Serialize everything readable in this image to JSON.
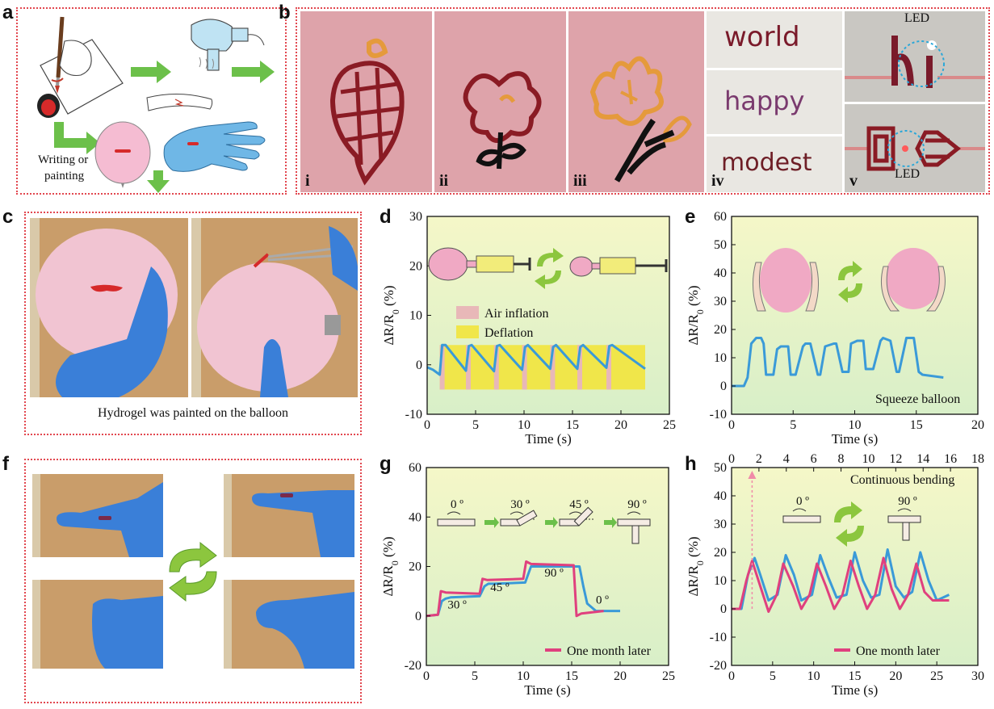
{
  "panels": {
    "a": {
      "label": "a",
      "caption_line1": "Writing or",
      "caption_line2": "painting"
    },
    "b": {
      "label": "b",
      "sub": [
        "i",
        "ii",
        "iii",
        "iv",
        "v"
      ],
      "words": [
        "world",
        "happy",
        "modest"
      ],
      "led_top": "LED",
      "led_bottom": "LED"
    },
    "c": {
      "label": "c",
      "caption": "Hydrogel was painted on the balloon"
    },
    "f": {
      "label": "f"
    }
  },
  "colors": {
    "border_dots": "#e2474f",
    "chart_bg_top": "#f5f7c8",
    "chart_bg_bottom": "#d8efc8",
    "blue_series": "#3a9ad8",
    "pink_series": "#e0407e",
    "inflation_band": "#e8b8b8",
    "deflation_band": "#f0e64a"
  },
  "chart_data": [
    {
      "id": "d",
      "label": "d",
      "type": "line",
      "xlabel": "Time (s)",
      "ylabel": "ΔR/R0 (%)",
      "xlim": [
        0,
        25
      ],
      "ylim": [
        -10,
        30
      ],
      "xticks": [
        0,
        5,
        10,
        15,
        20,
        25
      ],
      "yticks": [
        -10,
        0,
        10,
        20,
        30
      ],
      "legend": [
        {
          "name": "Air inflation",
          "color": "#e8b8b8"
        },
        {
          "name": "Deflation",
          "color": "#f0e64a"
        }
      ],
      "band_range": [
        1.3,
        22.5
      ],
      "inflation_bands": [
        [
          1.3,
          1.8
        ],
        [
          4.0,
          4.5
        ],
        [
          6.9,
          7.4
        ],
        [
          9.8,
          10.3
        ],
        [
          12.7,
          13.2
        ],
        [
          15.5,
          16.0
        ],
        [
          18.5,
          19.0
        ]
      ],
      "series": [
        {
          "color": "#3a9ad8",
          "x": [
            0,
            0.6,
            1.3,
            1.55,
            1.9,
            4.0,
            4.3,
            4.6,
            6.9,
            7.2,
            7.5,
            9.8,
            10.1,
            10.4,
            12.7,
            13.0,
            13.3,
            15.5,
            15.8,
            16.1,
            18.5,
            18.8,
            19.1,
            22.5
          ],
          "y": [
            -0.5,
            -1.0,
            -2.0,
            4.0,
            4.0,
            -1.2,
            3.8,
            4.0,
            -1.3,
            3.8,
            4.0,
            -1.0,
            3.6,
            4.0,
            -0.8,
            3.6,
            4.0,
            -0.8,
            3.6,
            4.0,
            -0.6,
            3.8,
            4.0,
            -0.8
          ]
        }
      ]
    },
    {
      "id": "e",
      "label": "e",
      "type": "line",
      "xlabel": "Time (s)",
      "ylabel": "ΔR/R0 (%)",
      "xlim": [
        0,
        20
      ],
      "ylim": [
        -10,
        60
      ],
      "xticks": [
        0,
        5,
        10,
        15,
        20
      ],
      "yticks": [
        -10,
        0,
        10,
        20,
        30,
        40,
        50,
        60
      ],
      "annotation": "Squeeze balloon",
      "series": [
        {
          "color": "#3a9ad8",
          "x": [
            0,
            1.0,
            1.3,
            1.6,
            2.0,
            2.4,
            2.6,
            2.8,
            3.4,
            3.7,
            4.0,
            4.6,
            4.8,
            5.2,
            5.8,
            6.0,
            6.4,
            7.0,
            7.2,
            7.6,
            8.3,
            8.5,
            9.0,
            9.5,
            9.7,
            10.2,
            10.7,
            10.9,
            11.5,
            12.1,
            12.3,
            12.9,
            13.4,
            13.6,
            14.2,
            14.6,
            14.8,
            15.2,
            15.5,
            17.2
          ],
          "y": [
            0,
            0,
            3,
            15,
            17,
            17,
            15,
            4,
            4,
            13,
            14,
            14,
            4,
            4,
            14,
            15,
            15,
            4,
            4,
            14,
            15,
            15,
            5,
            5,
            15,
            16,
            16,
            6,
            6,
            16,
            17,
            16,
            5,
            5,
            17,
            17,
            17,
            5,
            4,
            3
          ]
        }
      ]
    },
    {
      "id": "g",
      "label": "g",
      "type": "line",
      "xlabel": "Time (s)",
      "ylabel": "ΔR/R0 (%)",
      "xlim": [
        0,
        25
      ],
      "ylim": [
        -20,
        60
      ],
      "xticks": [
        0,
        5,
        10,
        15,
        20,
        25
      ],
      "yticks": [
        -20,
        0,
        20,
        40,
        60
      ],
      "angle_labels": [
        "0 º",
        "30 º",
        "45 º",
        "90 º"
      ],
      "curve_labels": [
        {
          "text": "30 º",
          "x": 2.2,
          "y": 3
        },
        {
          "text": "45 º",
          "x": 6.6,
          "y": 10
        },
        {
          "text": "90 º",
          "x": 12.2,
          "y": 16
        },
        {
          "text": "0 º",
          "x": 17.5,
          "y": 5
        }
      ],
      "legend": [
        {
          "name": "One month later",
          "color": "#e0407e"
        }
      ],
      "series": [
        {
          "name": "",
          "color": "#3a9ad8",
          "x": [
            0,
            1.2,
            1.6,
            2.0,
            2.5,
            5.5,
            6.0,
            6.4,
            7.0,
            10.2,
            10.8,
            11.5,
            12.5,
            15.8,
            16.2,
            16.6,
            17.5,
            20.0
          ],
          "y": [
            0,
            0.5,
            6,
            7,
            7.5,
            8,
            12,
            13,
            13,
            13.5,
            20,
            20,
            20,
            20,
            12,
            5,
            2,
            2
          ]
        },
        {
          "name": "One month later",
          "color": "#e0407e",
          "x": [
            0,
            1.2,
            1.5,
            2.0,
            5.5,
            5.8,
            6.3,
            10.0,
            10.3,
            10.8,
            15.2,
            15.5,
            16.0,
            18.3
          ],
          "y": [
            0,
            0.5,
            10,
            9.5,
            9.0,
            15,
            14.5,
            15,
            22,
            21,
            20.5,
            0,
            1,
            2
          ]
        }
      ]
    },
    {
      "id": "h",
      "label": "h",
      "type": "line",
      "xlabel": "Time (s)",
      "ylabel": "ΔR/R0 (%)",
      "xlim": [
        0,
        30
      ],
      "ylim": [
        -20,
        50
      ],
      "xticks": [
        0,
        5,
        10,
        15,
        20,
        25,
        30
      ],
      "yticks": [
        -20,
        -10,
        0,
        10,
        20,
        30,
        40,
        50
      ],
      "top_xlim": [
        0,
        18
      ],
      "top_xticks": [
        0,
        2,
        4,
        6,
        8,
        10,
        12,
        14,
        16,
        18
      ],
      "annotation": "Continuous bending",
      "angle_labels": [
        "0 º",
        "90 º"
      ],
      "arrow_x_top": 1.5,
      "legend": [
        {
          "name": "One month later",
          "color": "#e0407e"
        }
      ],
      "series": [
        {
          "name": "",
          "color": "#3a9ad8",
          "x": [
            0,
            1.2,
            2.0,
            2.8,
            3.5,
            4.5,
            5.6,
            6.6,
            7.6,
            8.5,
            9.8,
            10.8,
            11.8,
            12.8,
            14.0,
            15.0,
            16.0,
            17.0,
            18.0,
            19.0,
            20.0,
            21.0,
            22.0,
            23.0,
            24.0,
            25.0,
            26.5
          ],
          "y": [
            0,
            0,
            12,
            18,
            12,
            3,
            5,
            19,
            12,
            3,
            5,
            19,
            11,
            4,
            5,
            20,
            10,
            4,
            5,
            21,
            8,
            4,
            6,
            20,
            10,
            3,
            5
          ]
        },
        {
          "name": "One month later",
          "color": "#e0407e",
          "x": [
            0,
            1.0,
            1.8,
            2.5,
            3.5,
            4.5,
            5.5,
            6.3,
            7.5,
            8.5,
            9.5,
            10.4,
            11.5,
            12.5,
            13.5,
            14.5,
            15.5,
            16.5,
            17.5,
            18.5,
            19.5,
            20.5,
            21.5,
            22.5,
            23.5,
            24.5,
            26.5
          ],
          "y": [
            0,
            0,
            10,
            17,
            8,
            -1,
            5,
            16,
            8,
            0,
            5,
            16,
            8,
            0,
            5,
            17,
            8,
            0,
            5,
            18,
            7,
            0,
            5,
            16,
            6,
            3,
            3
          ]
        }
      ]
    }
  ]
}
